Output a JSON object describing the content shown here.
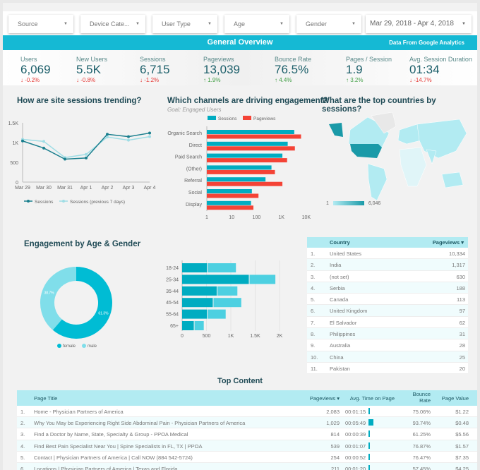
{
  "filters": [
    "Source",
    "Device Cate...",
    "User Type",
    "Age",
    "Gender",
    "Mar 29, 2018 - Apr 4, 2018"
  ],
  "banner": {
    "title": "General Overview",
    "source": "Data From Google Analytics"
  },
  "kpis": [
    {
      "label": "Users",
      "value": "6,069",
      "delta": "-0.2%",
      "dir": "down"
    },
    {
      "label": "New Users",
      "value": "5.5K",
      "delta": "-0.8%",
      "dir": "down"
    },
    {
      "label": "Sessions",
      "value": "6,715",
      "delta": "-1.2%",
      "dir": "down"
    },
    {
      "label": "Pageviews",
      "value": "13,039",
      "delta": "1.9%",
      "dir": "up"
    },
    {
      "label": "Bounce Rate",
      "value": "76.5%",
      "delta": "4.4%",
      "dir": "up"
    },
    {
      "label": "Pages / Session",
      "value": "1.9",
      "delta": "3.2%",
      "dir": "up"
    },
    {
      "label": "Avg. Session Duration",
      "value": "01:34",
      "delta": "-14.7%",
      "dir": "down"
    }
  ],
  "colors": {
    "teal": "#1a7f8e",
    "light": "#9fdde5",
    "cyan": "#00acc1",
    "red": "#f44336",
    "cyan2": "#4dd0e1",
    "banner": "#15b9d4"
  },
  "chart_data": [
    {
      "type": "line",
      "title": "How are site sessions trending?",
      "categories": [
        "Mar 29",
        "Mar 30",
        "Mar 31",
        "Apr 1",
        "Apr 2",
        "Apr 3",
        "Apr 4"
      ],
      "ylim": [
        0,
        1500
      ],
      "yticks": [
        "0",
        "500",
        "1K",
        "1.5K"
      ],
      "series": [
        {
          "name": "Sessions",
          "values": [
            1040,
            860,
            580,
            610,
            1210,
            1150,
            1240
          ]
        },
        {
          "name": "Sessions (previous 7 days)",
          "values": [
            1080,
            1030,
            620,
            700,
            1140,
            1060,
            1150
          ]
        }
      ]
    },
    {
      "type": "bar",
      "title": "Which channels are driving engagement?",
      "subtitle": "Goal: Engaged Users",
      "scale": "log",
      "xticks": [
        "1",
        "10",
        "100",
        "1K",
        "10K"
      ],
      "categories": [
        "Organic Search",
        "Direct",
        "Paid Search",
        "(Other)",
        "Referral",
        "Social",
        "Display"
      ],
      "series": [
        {
          "name": "Sessions",
          "values": [
            3300,
            1800,
            1100,
            400,
            230,
            65,
            60
          ]
        },
        {
          "name": "Pageviews",
          "values": [
            6200,
            3500,
            1700,
            550,
            1100,
            120,
            75
          ]
        }
      ]
    },
    {
      "type": "map",
      "title": "What are the top countries by sessions?",
      "legend_min": "1",
      "legend_max": "6,046"
    },
    {
      "type": "pie",
      "title": "Engagement by Age & Gender",
      "categories": [
        "female",
        "male"
      ],
      "values": [
        61.3,
        38.7
      ],
      "labels": [
        "61.3%",
        "38.7%"
      ]
    },
    {
      "type": "bar",
      "stacked": true,
      "categories": [
        "18-24",
        "25-34",
        "35-44",
        "45-54",
        "55-64",
        "65+"
      ],
      "xticks": [
        "0",
        "500",
        "1K",
        "1.5K",
        "2K"
      ],
      "xlim": [
        0,
        2000
      ],
      "series": [
        {
          "name": "female",
          "values": [
            510,
            1370,
            710,
            630,
            510,
            240
          ]
        },
        {
          "name": "male",
          "values": [
            580,
            530,
            410,
            570,
            370,
            190
          ]
        }
      ]
    }
  ],
  "countries": {
    "headers": [
      "Country",
      "Pageviews ▾"
    ],
    "rows": [
      [
        "1.",
        "United States",
        "10,334"
      ],
      [
        "2.",
        "India",
        "1,317"
      ],
      [
        "3.",
        "(not set)",
        "630"
      ],
      [
        "4.",
        "Serbia",
        "188"
      ],
      [
        "5.",
        "Canada",
        "113"
      ],
      [
        "6.",
        "United Kingdom",
        "97"
      ],
      [
        "7.",
        "El Salvador",
        "62"
      ],
      [
        "8.",
        "Philippines",
        "31"
      ],
      [
        "9.",
        "Australia",
        "28"
      ],
      [
        "10.",
        "China",
        "25"
      ],
      [
        "11.",
        "Pakistan",
        "20"
      ]
    ]
  },
  "top_content": {
    "title": "Top Content",
    "headers": [
      "Page Title",
      "Pageviews ▾",
      "Avg. Time on Page",
      "Bounce Rate",
      "Page Value"
    ],
    "rows": [
      [
        "1.",
        "Home - Physician Partners of America",
        "2,083",
        "00:01:15",
        "75.06%",
        "$1.22",
        75
      ],
      [
        "2.",
        "Why You May be Experiencing Right Side Abdominal Pain - Physician Partners of America",
        "1,029",
        "00:05:49",
        "93.74%",
        "$0.48",
        349
      ],
      [
        "3.",
        "Find a Doctor by Name, State, Specialty & Group - PPOA Medical",
        "814",
        "00:00:39",
        "61.25%",
        "$5.56",
        39
      ],
      [
        "4.",
        "Find Best Pain Specialist Near You | Spine Specialists in FL, TX | PPOA",
        "539",
        "00:01:07",
        "76.87%",
        "$1.57",
        67
      ],
      [
        "5.",
        "Contact | Physician Partners of America | Call NOW (884 542-5724)",
        "254",
        "00:00:52",
        "76.47%",
        "$7.35",
        52
      ],
      [
        "6.",
        "Locations | Physician Partners of America | Texas and Florida",
        "211",
        "00:01:20",
        "57.45%",
        "$4.25",
        80
      ]
    ]
  }
}
